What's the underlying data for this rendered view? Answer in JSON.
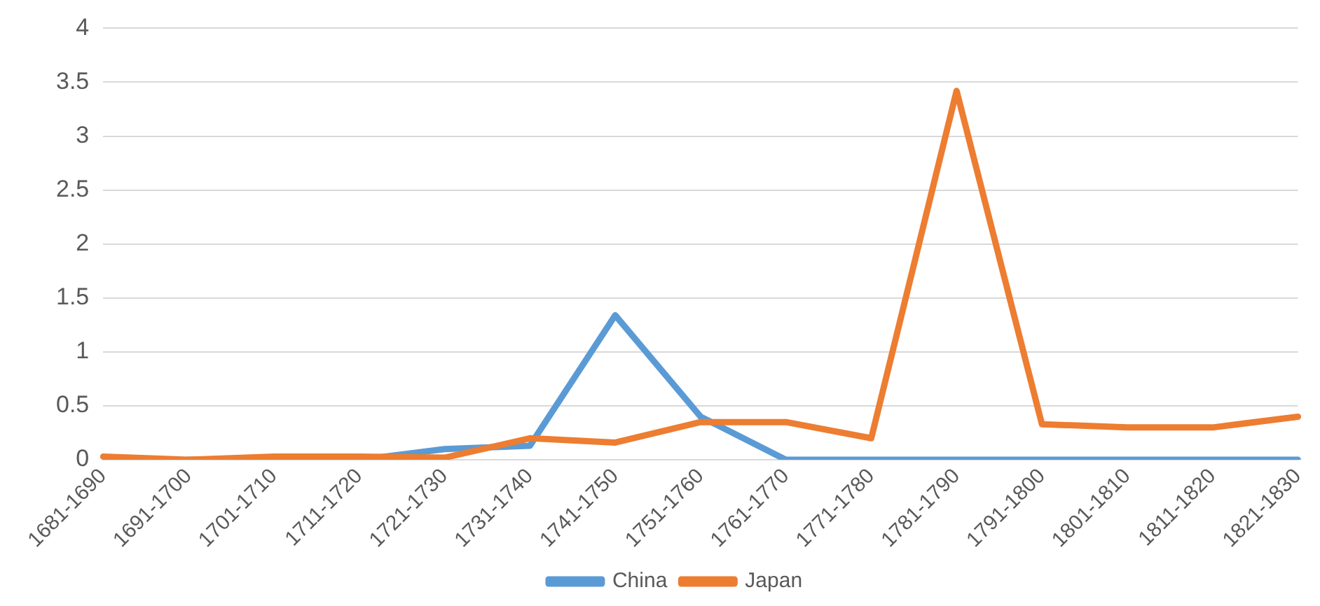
{
  "chart_data": {
    "type": "line",
    "categories": [
      "1681-1690",
      "1691-1700",
      "1701-1710",
      "1711-1720",
      "1721-1730",
      "1731-1740",
      "1741-1750",
      "1751-1760",
      "1761-1770",
      "1771-1780",
      "1781-1790",
      "1791-1800",
      "1801-1810",
      "1811-1820",
      "1821-1830"
    ],
    "series": [
      {
        "name": "China",
        "color": "#5b9bd5",
        "values": [
          null,
          0,
          0,
          0,
          0.1,
          0.13,
          1.34,
          0.4,
          0,
          0,
          0,
          0,
          0,
          0,
          0
        ]
      },
      {
        "name": "Japan",
        "color": "#ed7d31",
        "values": [
          0.03,
          0,
          0.03,
          0.03,
          0.02,
          0.2,
          0.16,
          0.35,
          0.35,
          0.2,
          3.42,
          0.33,
          0.3,
          0.3,
          0.4
        ]
      }
    ],
    "ylim": [
      0,
      4
    ],
    "yticks": [
      0,
      0.5,
      1,
      1.5,
      2,
      2.5,
      3,
      3.5,
      4
    ],
    "grid": "y",
    "legend": "bottom",
    "marker": "none",
    "line_style": "solid"
  }
}
